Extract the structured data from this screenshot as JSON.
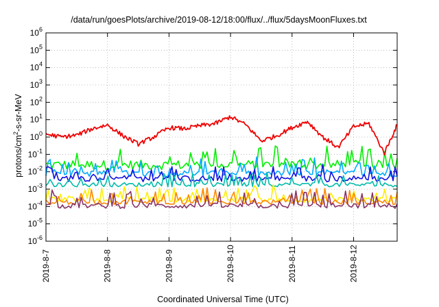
{
  "chart_data": {
    "type": "line",
    "title": "/data/run/goesPlots/archive/2019-08-12/18:00/flux/../flux/5daysMoonFluxes.txt",
    "xlabel": "Coordinated Universal Time (UTC)",
    "ylabel_parts": {
      "base": "protons/cm",
      "sup": "2",
      "rest": "-s-sr-MeV"
    },
    "y_scale": "log",
    "ylim": [
      1e-06,
      1000000.0
    ],
    "y_ticks": [
      {
        "base": "10",
        "exp": "-6"
      },
      {
        "base": "10",
        "exp": "-5"
      },
      {
        "base": "10",
        "exp": "-4"
      },
      {
        "base": "10",
        "exp": "-3"
      },
      {
        "base": "10",
        "exp": "-2"
      },
      {
        "base": "10",
        "exp": "-1"
      },
      {
        "base": "10",
        "exp": "0"
      },
      {
        "base": "10",
        "exp": "1"
      },
      {
        "base": "10",
        "exp": "2"
      },
      {
        "base": "10",
        "exp": "3"
      },
      {
        "base": "10",
        "exp": "4"
      },
      {
        "base": "10",
        "exp": "5"
      },
      {
        "base": "10",
        "exp": "6"
      }
    ],
    "x_start": "2019-8-7 00:00",
    "x_end": "2019-8-12 17:00",
    "x_ticks": [
      "2019-8-7",
      "2019-8-8",
      "2019-8-9",
      "2019-8-10",
      "2019-8-11",
      "2019-8-12"
    ],
    "grid": true,
    "series": [
      {
        "color": "#00ee00",
        "center": 0.025,
        "noise": 0.55,
        "spike": 0.75
      },
      {
        "color": "#00aaff",
        "center": 0.008,
        "noise": 0.35,
        "spike": 0.55
      },
      {
        "color": "#1010e0",
        "center": 0.004,
        "noise": 0.35,
        "spike": 0.5
      },
      {
        "color": "#00bbaa",
        "center": 0.0018,
        "noise": 0.25,
        "spike": 0.45
      },
      {
        "color": "#ffee00",
        "center": 0.00025,
        "noise": 0.3,
        "spike": 0.5
      },
      {
        "color": "#ff8800",
        "center": 0.00018,
        "noise": 0.3,
        "spike": 0.5
      },
      {
        "color": "#883366",
        "center": 0.00011,
        "noise": 0.3,
        "spike": 0.55
      },
      {
        "color": "#ee0000",
        "x": [
          "2019-8-7 00:00",
          "2019-8-7 06:00",
          "2019-8-7 12:00",
          "2019-8-7 18:00",
          "2019-8-8 00:00",
          "2019-8-8 06:00",
          "2019-8-8 12:00",
          "2019-8-8 18:00",
          "2019-8-9 00:00",
          "2019-8-9 06:00",
          "2019-8-9 12:00",
          "2019-8-9 18:00",
          "2019-8-10 00:00",
          "2019-8-10 06:00",
          "2019-8-10 12:00",
          "2019-8-10 18:00",
          "2019-8-11 00:00",
          "2019-8-11 06:00",
          "2019-8-11 12:00",
          "2019-8-11 18:00",
          "2019-8-12 00:00",
          "2019-8-12 06:00",
          "2019-8-12 12:00",
          "2019-8-12 17:00"
        ],
        "y": [
          1.5,
          1.0,
          1.3,
          3.0,
          5.0,
          1.2,
          0.4,
          1.0,
          3.5,
          3.0,
          4.5,
          6.0,
          15.0,
          5.0,
          0.6,
          1.2,
          3.5,
          8.0,
          1.0,
          0.25,
          4.0,
          6.0,
          0.12,
          5.0
        ]
      }
    ]
  }
}
